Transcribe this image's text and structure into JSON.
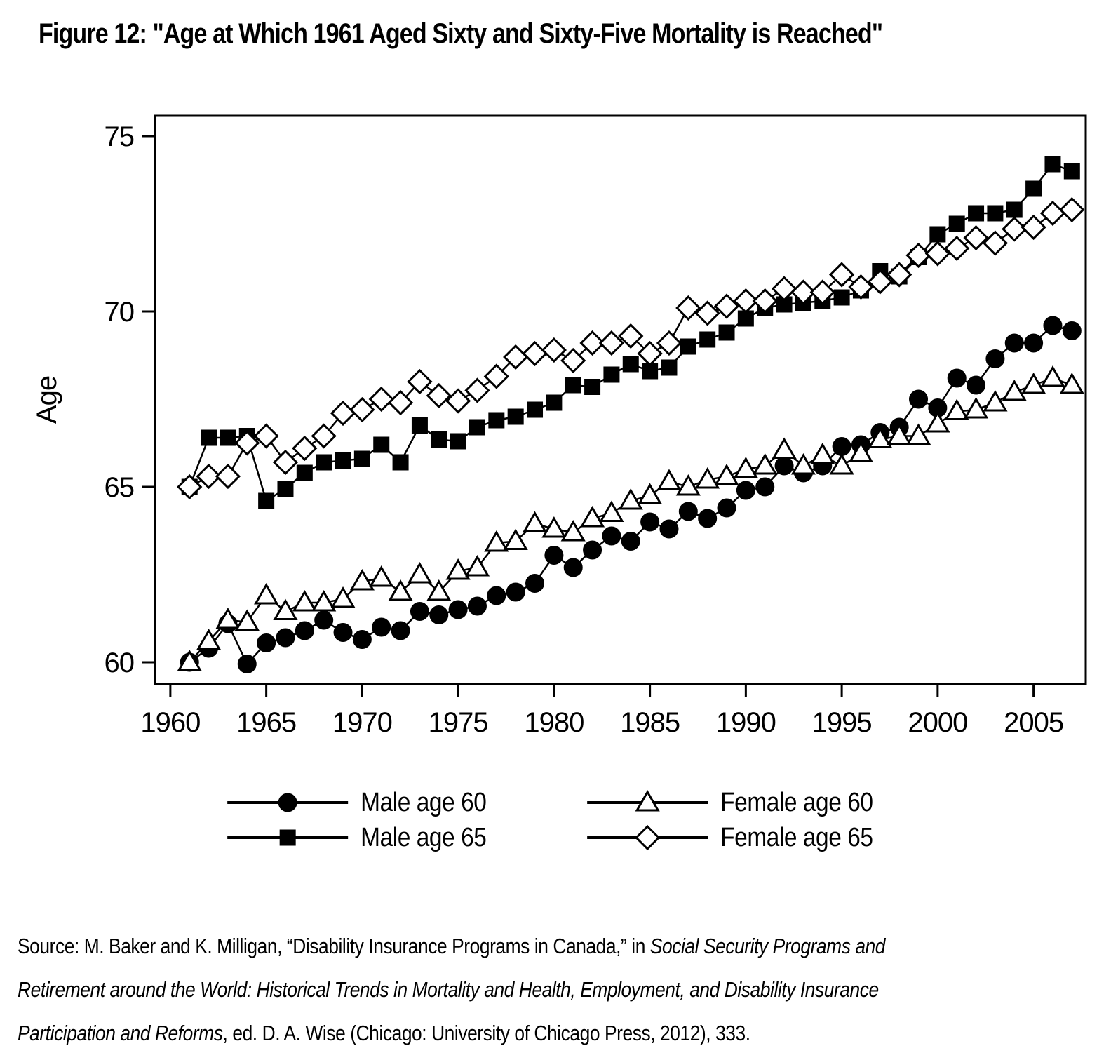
{
  "title": "Figure 12: \"Age at Which 1961 Aged Sixty and Sixty-Five Mortality is Reached\"",
  "chart_data": {
    "type": "line",
    "title": "Figure 12: \"Age at Which 1961 Aged Sixty and Sixty-Five Mortality is Reached\"",
    "xlabel": "",
    "ylabel": "Age",
    "x": [
      1961,
      1962,
      1963,
      1964,
      1965,
      1966,
      1967,
      1968,
      1969,
      1970,
      1971,
      1972,
      1973,
      1974,
      1975,
      1976,
      1977,
      1978,
      1979,
      1980,
      1981,
      1982,
      1983,
      1984,
      1985,
      1986,
      1987,
      1988,
      1989,
      1990,
      1991,
      1992,
      1993,
      1994,
      1995,
      1996,
      1997,
      1998,
      1999,
      2000,
      2001,
      2002,
      2003,
      2004,
      2005,
      2006,
      2007
    ],
    "xticks": [
      1960,
      1965,
      1970,
      1975,
      1980,
      1985,
      1990,
      1995,
      2000,
      2005
    ],
    "yticks": [
      60,
      65,
      70,
      75
    ],
    "xlim": [
      1959.2,
      2007.72
    ],
    "ylim": [
      59.38,
      75.58
    ],
    "grid": false,
    "legend_position": "bottom",
    "legend_order": [
      0,
      2,
      1,
      3
    ],
    "series": [
      {
        "name": "Male age 60",
        "marker": "circle",
        "fill": "filled",
        "values": [
          60.0,
          60.4,
          61.1,
          59.95,
          60.55,
          60.7,
          60.9,
          61.2,
          60.85,
          60.65,
          61.0,
          60.9,
          61.45,
          61.35,
          61.5,
          61.6,
          61.9,
          62.0,
          62.25,
          63.05,
          62.7,
          63.2,
          63.6,
          63.45,
          64.0,
          63.8,
          64.3,
          64.1,
          64.4,
          64.9,
          65.0,
          65.6,
          65.4,
          65.6,
          66.15,
          66.2,
          66.55,
          66.7,
          67.5,
          67.25,
          68.1,
          67.9,
          68.65,
          69.1,
          69.1,
          69.6,
          69.45
        ]
      },
      {
        "name": "Male age 65",
        "marker": "square",
        "fill": "filled",
        "values": [
          65.0,
          66.4,
          66.4,
          66.45,
          64.6,
          64.95,
          65.4,
          65.7,
          65.75,
          65.8,
          66.2,
          65.7,
          66.75,
          66.35,
          66.3,
          66.7,
          66.9,
          67.0,
          67.2,
          67.4,
          67.9,
          67.85,
          68.2,
          68.5,
          68.3,
          68.4,
          69.0,
          69.2,
          69.4,
          69.8,
          70.1,
          70.2,
          70.25,
          70.3,
          70.4,
          70.6,
          71.15,
          71.0,
          71.55,
          72.2,
          72.5,
          72.8,
          72.8,
          72.9,
          73.5,
          74.2,
          74.0
        ]
      },
      {
        "name": "Female age 60",
        "marker": "triangle",
        "fill": "open",
        "values": [
          60.0,
          60.6,
          61.2,
          61.15,
          61.9,
          61.45,
          61.7,
          61.7,
          61.8,
          62.3,
          62.4,
          62.0,
          62.5,
          62.0,
          62.6,
          62.7,
          63.4,
          63.45,
          63.95,
          63.8,
          63.7,
          64.1,
          64.25,
          64.6,
          64.75,
          65.15,
          65.0,
          65.2,
          65.3,
          65.5,
          65.6,
          66.05,
          65.6,
          65.9,
          65.6,
          65.95,
          66.35,
          66.45,
          66.45,
          66.8,
          67.15,
          67.2,
          67.4,
          67.7,
          67.9,
          68.1,
          67.9
        ]
      },
      {
        "name": "Female age 65",
        "marker": "diamond",
        "fill": "open",
        "values": [
          65.0,
          65.3,
          65.3,
          66.25,
          66.45,
          65.7,
          66.1,
          66.45,
          67.1,
          67.2,
          67.5,
          67.4,
          68.0,
          67.6,
          67.45,
          67.75,
          68.15,
          68.7,
          68.8,
          68.9,
          68.6,
          69.1,
          69.1,
          69.3,
          68.8,
          69.1,
          70.1,
          69.95,
          70.15,
          70.3,
          70.3,
          70.65,
          70.55,
          70.55,
          71.05,
          70.7,
          70.85,
          71.05,
          71.6,
          71.65,
          71.8,
          72.1,
          71.95,
          72.35,
          72.4,
          72.8,
          72.9
        ]
      }
    ]
  },
  "source": {
    "segments": [
      {
        "style": "normal",
        "text": "Source: M. Baker and K. Milligan, “Disability Insurance Programs in Canada,” in "
      },
      {
        "style": "italic",
        "text": "Social Security Programs and Retirement around the World: Historical Trends in Mortality and Health, Employment, and Disability Insurance Participation and Reforms"
      },
      {
        "style": "normal",
        "text": ", ed. D. A. Wise (Chicago: University of Chicago Press, 2012), 333."
      }
    ]
  },
  "colors": {
    "ink": "#000000",
    "background": "#ffffff"
  }
}
